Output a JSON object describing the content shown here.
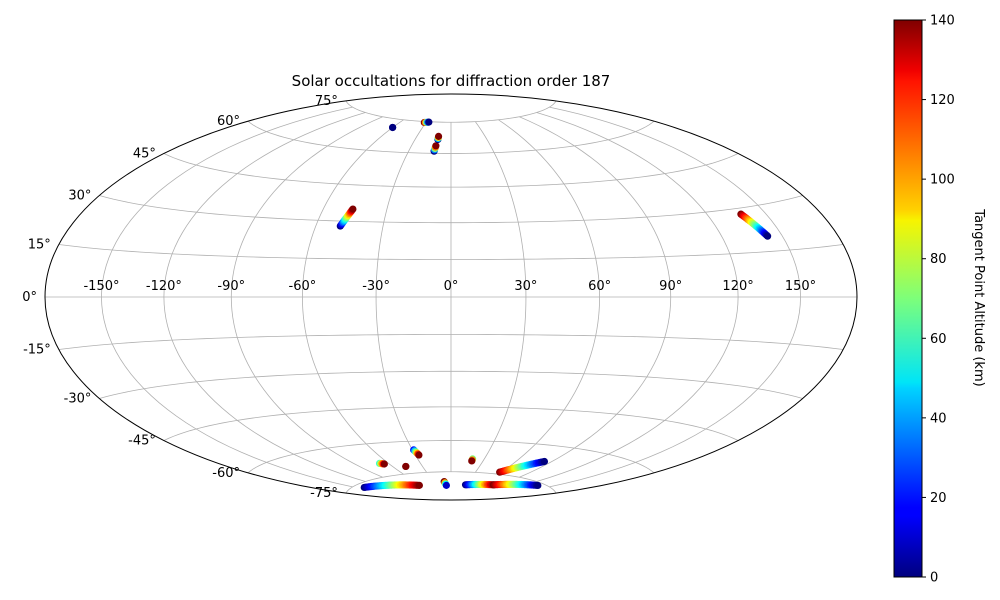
{
  "chart_data": {
    "type": "scatter",
    "projection": "hammer",
    "title": "Solar occultations for diffraction order 187",
    "grid": true,
    "lon_ticks": [
      "-150°",
      "-120°",
      "-90°",
      "-60°",
      "-30°",
      "0°",
      "30°",
      "60°",
      "90°",
      "120°",
      "150°"
    ],
    "lon_tick_values": [
      -150,
      -120,
      -90,
      -60,
      -30,
      0,
      30,
      60,
      90,
      120,
      150
    ],
    "lat_ticks": [
      "75°",
      "60°",
      "45°",
      "30°",
      "15°",
      "0°",
      "-15°",
      "-30°",
      "-45°",
      "-60°",
      "-75°"
    ],
    "lat_tick_values": [
      75,
      60,
      45,
      30,
      15,
      0,
      -15,
      -30,
      -45,
      -60,
      -75
    ],
    "colorbar": {
      "label": "Tangent Point Altitude (km)",
      "min": 0,
      "max": 140,
      "ticks": [
        "0",
        "20",
        "40",
        "60",
        "80",
        "100",
        "120",
        "140"
      ],
      "tick_values": [
        0,
        20,
        40,
        60,
        80,
        100,
        120,
        140
      ],
      "colormap": "jet"
    },
    "occultations": [
      {
        "lon_start": -49.0,
        "lat_start": 28.0,
        "lon_end": -46.0,
        "lat_end": 35.0,
        "alt_start": 0,
        "alt_end": 140
      },
      {
        "lon_start": 137.0,
        "lat_start": 28.0,
        "lon_end": 142.5,
        "lat_end": 20.0,
        "alt_start": 140,
        "alt_end": 0
      },
      {
        "lon_start": -32.0,
        "lat_start": 74.5,
        "lon_end": -27.0,
        "lat_end": 74.8,
        "alt_start": 140,
        "alt_end": 0
      },
      {
        "lon_start": -60.0,
        "lat_start": 71.0,
        "lon_end": -60.0,
        "lat_end": 71.0,
        "alt_start": 0,
        "alt_end": 0
      },
      {
        "lon_start": -12.0,
        "lat_start": 61.0,
        "lon_end": -11.5,
        "lat_end": 63.5,
        "alt_start": 0,
        "alt_end": 140
      },
      {
        "lon_start": -11.0,
        "lat_start": 66.5,
        "lon_end": -11.0,
        "lat_end": 68.0,
        "alt_start": 0,
        "alt_end": 140
      },
      {
        "lon_start": -143.0,
        "lat_start": -76.5,
        "lon_end": -64.0,
        "lat_end": -81.0,
        "alt_start": 0,
        "alt_end": 140
      },
      {
        "lon_start": -68.0,
        "lat_start": -69.0,
        "lon_end": -64.5,
        "lat_end": -69.5,
        "alt_start": 60,
        "alt_end": 140
      },
      {
        "lon_start": -47.0,
        "lat_start": -71.5,
        "lon_end": -47.0,
        "lat_end": -71.5,
        "alt_start": 140,
        "alt_end": 140
      },
      {
        "lon_start": -29.0,
        "lat_start": -64.0,
        "lon_end": -27.0,
        "lat_end": -66.5,
        "alt_start": 20,
        "alt_end": 140
      },
      {
        "lon_start": -12.0,
        "lat_start": -80.0,
        "lon_end": -10.0,
        "lat_end": -82.0,
        "alt_start": 140,
        "alt_end": 10
      },
      {
        "lon_start": 19.5,
        "lat_start": -68.5,
        "lon_end": 19.5,
        "lat_end": -69.5,
        "alt_start": 70,
        "alt_end": 140
      },
      {
        "lon_start": 30.0,
        "lat_start": -81.5,
        "lon_end": 135.0,
        "lat_end": -76.0,
        "alt_start": 0,
        "alt_end": 0
      },
      {
        "lon_start": 58.0,
        "lat_start": -74.0,
        "lon_end": 84.0,
        "lat_end": -67.0,
        "alt_start": 140,
        "alt_end": 0
      }
    ],
    "segments": [
      {
        "lon_start": 30.0,
        "lat_start": -81.5,
        "lon_end": 80.0,
        "lat_end": -80.0,
        "alt_start": 0,
        "alt_end": 140
      },
      {
        "lon_start": 80.0,
        "lat_start": -80.0,
        "lon_end": 135.0,
        "lat_end": -76.0,
        "alt_start": 140,
        "alt_end": 0
      }
    ]
  }
}
